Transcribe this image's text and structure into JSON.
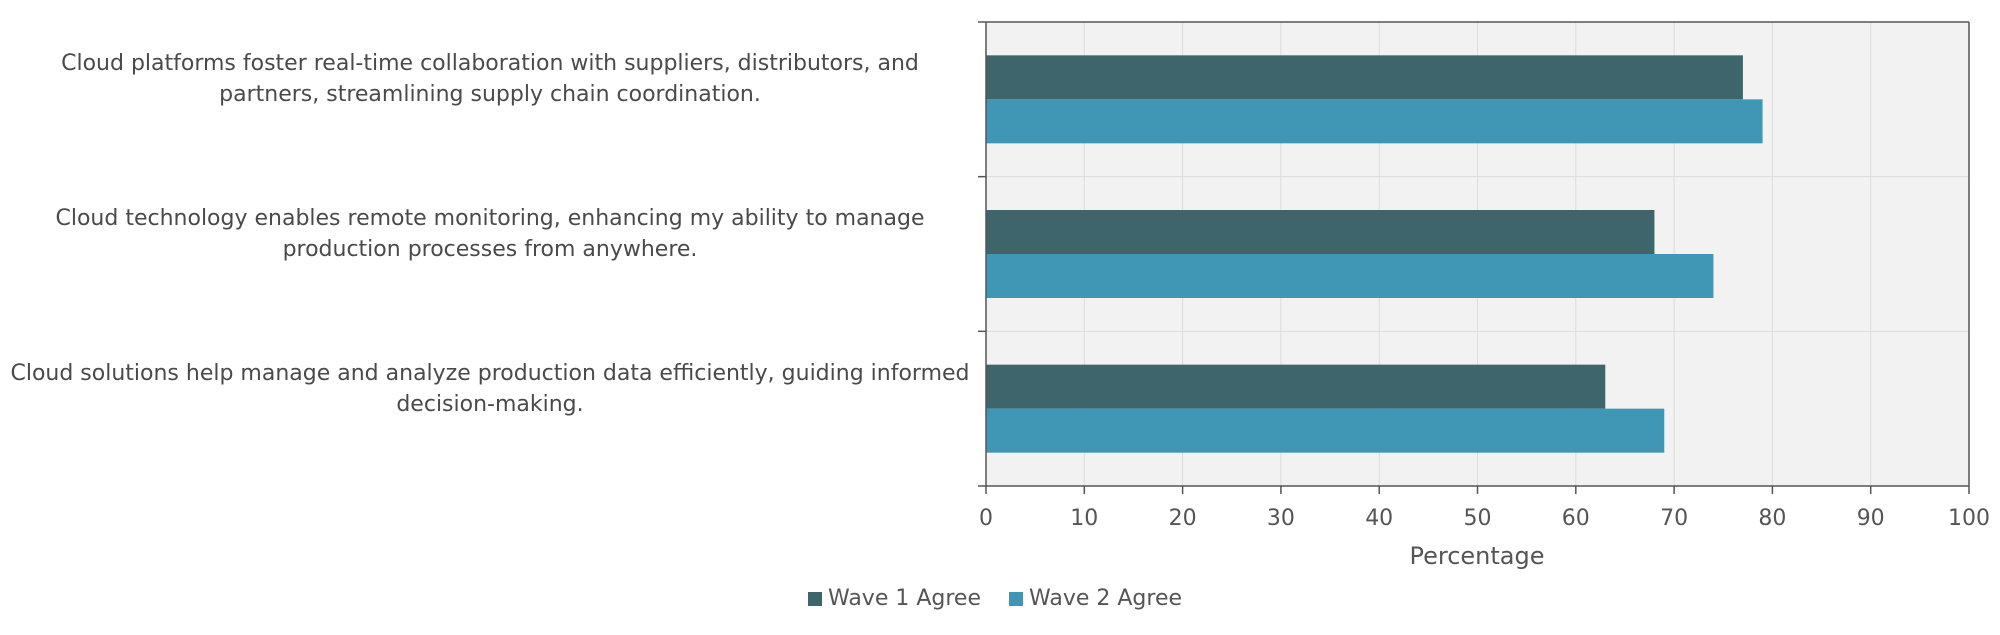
{
  "chart_data": {
    "type": "bar",
    "orientation": "horizontal",
    "categories": [
      "Cloud platforms foster real-time collaboration with suppliers, distributors, and partners, streamlining supply chain coordination.",
      "Cloud technology enables remote monitoring, enhancing my ability to manage production processes from anywhere.",
      "Cloud solutions help manage and analyze production data efficiently, guiding informed decision-making."
    ],
    "series": [
      {
        "name": "Wave 1 Agree",
        "values": [
          77,
          68,
          63
        ],
        "color": "#3d656b"
      },
      {
        "name": "Wave 2 Agree",
        "values": [
          79,
          74,
          69
        ],
        "color": "#3f97b5"
      }
    ],
    "xlabel": "Percentage",
    "xlim": [
      0,
      100
    ],
    "xticks": [
      "0",
      "10",
      "20",
      "30",
      "40",
      "50",
      "60",
      "70",
      "80",
      "90",
      "100"
    ],
    "grid": true,
    "legend_position": "bottom",
    "plot_background": "#f2f2f2"
  }
}
